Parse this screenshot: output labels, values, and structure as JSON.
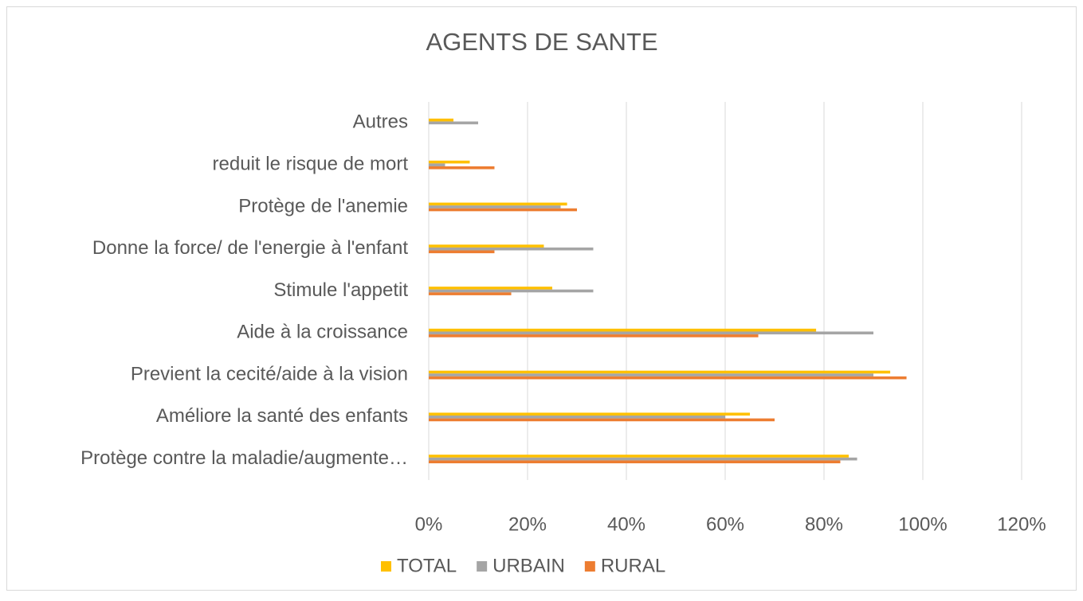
{
  "chart_data": {
    "type": "hbar",
    "title": "AGENTS DE SANTE",
    "categories": [
      "Autres",
      "reduit le risque de mort",
      "Protège de l'anemie",
      "Donne la force/ de l'energie à l'enfant",
      "Stimule l'appetit",
      "Aide à la croissance",
      "Previent la cecité/aide à la vision",
      "Améliore la santé des enfants",
      "Protège contre la maladie/augmente…"
    ],
    "series": [
      {
        "name": "TOTAL",
        "color": "#FFC000",
        "values": [
          5,
          8.3,
          28,
          23.3,
          25,
          78.4,
          93.4,
          65,
          85
        ]
      },
      {
        "name": "URBAIN",
        "color": "#A5A5A5",
        "values": [
          10,
          3.3,
          26.7,
          33.3,
          33.3,
          90,
          90,
          60,
          86.7
        ]
      },
      {
        "name": "RURAL",
        "color": "#ED7D31",
        "values": [
          0,
          13.3,
          30,
          13.3,
          16.7,
          66.7,
          96.7,
          70,
          83.3
        ]
      }
    ],
    "xlim": [
      0,
      120
    ],
    "xticks": [
      {
        "value": 0,
        "label": "0%"
      },
      {
        "value": 20,
        "label": "20%"
      },
      {
        "value": 40,
        "label": "40%"
      },
      {
        "value": 60,
        "label": "60%"
      },
      {
        "value": 80,
        "label": "80%"
      },
      {
        "value": 100,
        "label": "100%"
      },
      {
        "value": 120,
        "label": "120%"
      }
    ],
    "grid": true,
    "legend": "bottom"
  }
}
